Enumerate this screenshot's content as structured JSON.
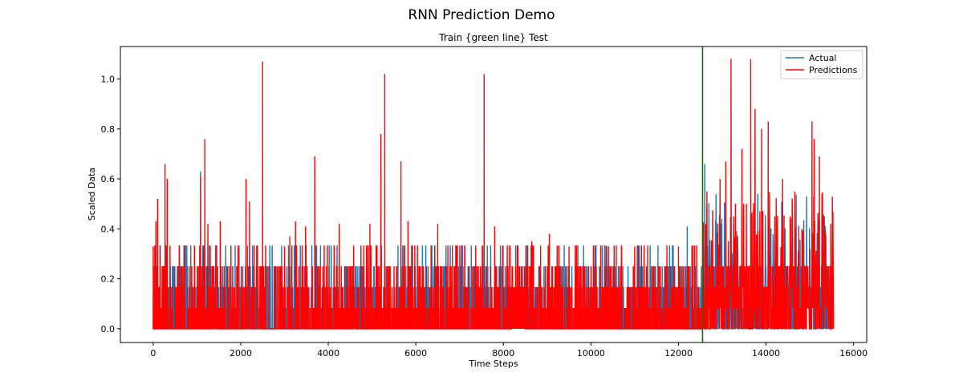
{
  "figure": {
    "suptitle": "RNN Prediction Demo"
  },
  "chart_data": {
    "type": "line",
    "title": "Train {green line} Test",
    "xlabel": "Time Steps",
    "ylabel": "Scaled Data",
    "xlim": [
      -750,
      16300
    ],
    "ylim": [
      -0.055,
      1.13
    ],
    "xticks": [
      0,
      2000,
      4000,
      6000,
      8000,
      10000,
      12000,
      14000,
      16000
    ],
    "yticks": [
      0.0,
      0.2,
      0.4,
      0.6,
      0.8,
      1.0
    ],
    "xtick_labels": [
      "0",
      "2000",
      "4000",
      "6000",
      "8000",
      "10000",
      "12000",
      "14000",
      "16000"
    ],
    "ytick_labels": [
      "0.0",
      "0.2",
      "0.4",
      "0.6",
      "0.8",
      "1.0"
    ],
    "grid": false,
    "legend": {
      "position": "top-right",
      "entries": [
        "Actual",
        "Predictions"
      ]
    },
    "split_line": {
      "x": 12550,
      "color": "#008000"
    },
    "n_points": 15540,
    "series": [
      {
        "name": "Actual",
        "color": "#1f77b4",
        "peaks": [
          [
            1080,
            0.63
          ],
          [
            12200,
            0.41
          ],
          [
            12600,
            0.66
          ],
          [
            14680,
            0.41
          ],
          [
            11420,
            0.21
          ],
          [
            10360,
            0.33
          ]
        ]
      },
      {
        "name": "Predictions",
        "color": "#ff0000",
        "peaks": [
          [
            0,
            0.33
          ],
          [
            60,
            0.43
          ],
          [
            100,
            0.52
          ],
          [
            270,
            0.66
          ],
          [
            320,
            0.6
          ],
          [
            600,
            0.33
          ],
          [
            1080,
            0.61
          ],
          [
            1180,
            0.76
          ],
          [
            1250,
            0.42
          ],
          [
            1530,
            0.43
          ],
          [
            2120,
            0.6
          ],
          [
            2200,
            0.51
          ],
          [
            2500,
            1.07
          ],
          [
            3000,
            0.33
          ],
          [
            3120,
            0.37
          ],
          [
            3250,
            0.43
          ],
          [
            3480,
            0.41
          ],
          [
            3690,
            0.69
          ],
          [
            4250,
            0.42
          ],
          [
            4950,
            0.42
          ],
          [
            5200,
            0.78
          ],
          [
            5290,
            1.02
          ],
          [
            5660,
            0.67
          ],
          [
            5820,
            0.43
          ],
          [
            6500,
            0.42
          ],
          [
            7560,
            1.02
          ],
          [
            7800,
            0.41
          ],
          [
            8650,
            0.35
          ],
          [
            9050,
            0.38
          ],
          [
            9500,
            0.33
          ],
          [
            10400,
            0.33
          ],
          [
            11000,
            0.33
          ],
          [
            12000,
            0.33
          ],
          [
            12650,
            0.55
          ],
          [
            12950,
            0.6
          ],
          [
            13080,
            0.67
          ],
          [
            13200,
            1.08
          ],
          [
            13300,
            0.5
          ],
          [
            13450,
            0.72
          ],
          [
            13550,
            0.5
          ],
          [
            13650,
            1.08
          ],
          [
            13750,
            0.88
          ],
          [
            13900,
            0.8
          ],
          [
            14050,
            0.83
          ],
          [
            14200,
            0.45
          ],
          [
            14380,
            0.6
          ],
          [
            14550,
            0.45
          ],
          [
            14820,
            0.4
          ],
          [
            15050,
            0.83
          ],
          [
            15100,
            0.76
          ],
          [
            15220,
            0.69
          ],
          [
            15480,
            0.42
          ]
        ]
      }
    ]
  }
}
